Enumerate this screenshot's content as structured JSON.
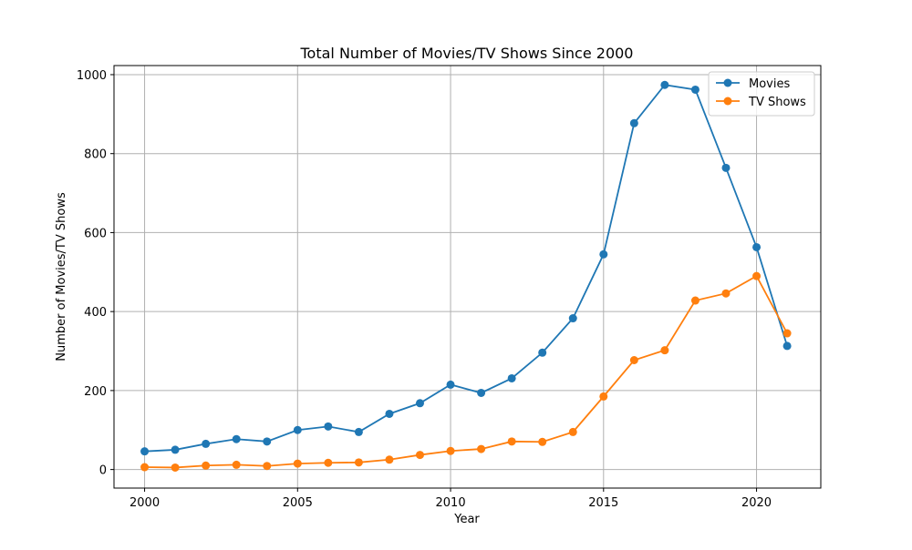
{
  "chart_data": {
    "type": "line",
    "title": "Total Number of Movies/TV Shows Since 2000",
    "xlabel": "Year",
    "ylabel": "Number of Movies/TV Shows",
    "x": [
      2000,
      2001,
      2002,
      2003,
      2004,
      2005,
      2006,
      2007,
      2008,
      2009,
      2010,
      2011,
      2012,
      2013,
      2014,
      2015,
      2016,
      2017,
      2018,
      2019,
      2020,
      2021
    ],
    "xlim": [
      1999,
      2022.1
    ],
    "ylim": [
      -47,
      1023
    ],
    "xticks": [
      2000,
      2005,
      2010,
      2015,
      2020
    ],
    "yticks": [
      0,
      200,
      400,
      600,
      800,
      1000
    ],
    "grid": true,
    "legend": "top-right",
    "markers": true,
    "series": [
      {
        "name": "Movies",
        "color": "#1f77b4",
        "values": [
          46,
          50,
          65,
          77,
          71,
          100,
          109,
          95,
          141,
          168,
          215,
          194,
          231,
          296,
          383,
          545,
          877,
          974,
          962,
          764,
          563,
          313
        ]
      },
      {
        "name": "TV Shows",
        "color": "#ff7f0e",
        "values": [
          6,
          5,
          10,
          12,
          9,
          15,
          17,
          18,
          25,
          37,
          47,
          52,
          71,
          70,
          95,
          185,
          277,
          302,
          428,
          446,
          490,
          345
        ]
      }
    ]
  }
}
